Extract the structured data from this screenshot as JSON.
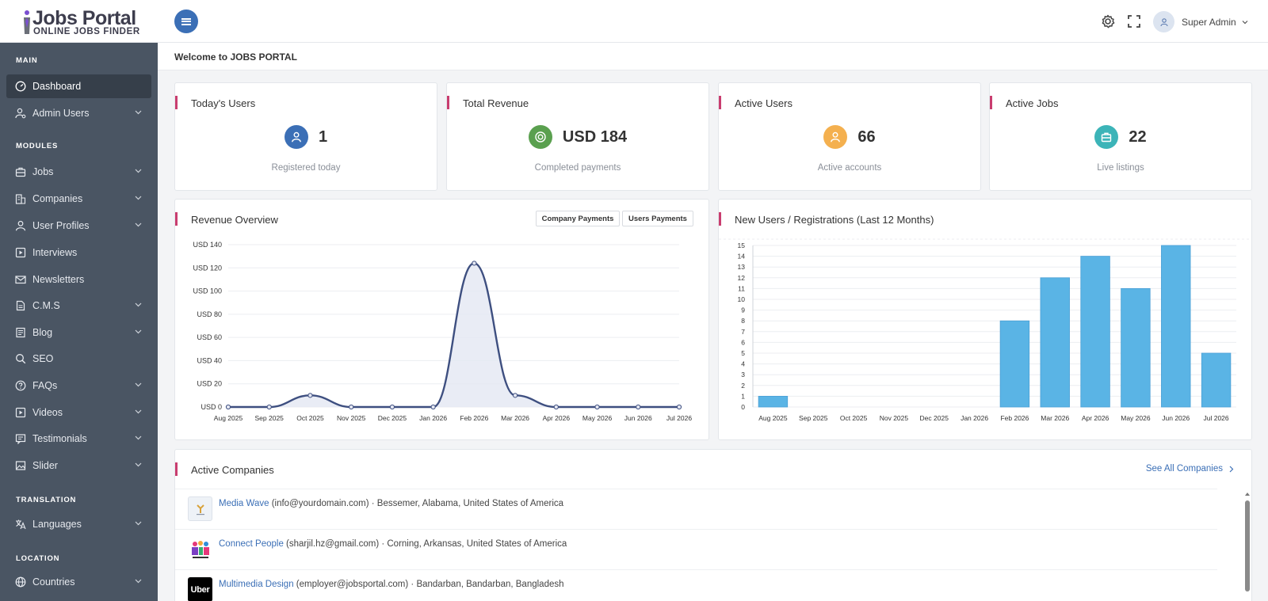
{
  "header": {
    "logo_title": "Jobs Portal",
    "logo_subtitle": "ONLINE JOBS FINDER",
    "user_name": "Super Admin",
    "icons": [
      "menu-icon",
      "gear-icon",
      "fullscreen-icon",
      "user-icon",
      "chevron-down-icon"
    ],
    "accent_color": "#3b6fb6"
  },
  "welcome": {
    "text": "Welcome to JOBS PORTAL"
  },
  "sidebar": {
    "sections": {
      "main": "MAIN",
      "modules": "MODULES",
      "translation": "TRANSLATION",
      "location": "LOCATION"
    },
    "items": [
      {
        "label": "Dashboard",
        "icon": "dashboard-icon",
        "active": true
      },
      {
        "label": "Admin Users",
        "icon": "user-cog-icon"
      },
      {
        "label": "Jobs",
        "icon": "briefcase-icon"
      },
      {
        "label": "Companies",
        "icon": "building-icon"
      },
      {
        "label": "User Profiles",
        "icon": "user-icon"
      },
      {
        "label": "Interviews",
        "icon": "play-square-icon"
      },
      {
        "label": "Newsletters",
        "icon": "mail-icon"
      },
      {
        "label": "C.M.S",
        "icon": "document-icon"
      },
      {
        "label": "Blog",
        "icon": "blog-icon"
      },
      {
        "label": "SEO",
        "icon": "search-icon"
      },
      {
        "label": "FAQs",
        "icon": "question-icon"
      },
      {
        "label": "Videos",
        "icon": "video-icon"
      },
      {
        "label": "Testimonials",
        "icon": "comment-icon"
      },
      {
        "label": "Slider",
        "icon": "image-icon"
      },
      {
        "label": "Languages",
        "icon": "translate-icon"
      },
      {
        "label": "Countries",
        "icon": "globe-icon"
      }
    ]
  },
  "stats": [
    {
      "title": "Today's Users",
      "value": "1",
      "sub": "Registered today",
      "icon": "user-icon",
      "color": "#3b6fb6"
    },
    {
      "title": "Total Revenue",
      "value": "USD 184",
      "sub": "Completed payments",
      "icon": "money-icon",
      "color": "#5aa04f"
    },
    {
      "title": "Active Users",
      "value": "66",
      "sub": "Active accounts",
      "icon": "user-icon",
      "color": "#f4b04f"
    },
    {
      "title": "Active Jobs",
      "value": "22",
      "sub": "Live listings",
      "icon": "briefcase-icon",
      "color": "#3cb4b8"
    }
  ],
  "revenue_panel": {
    "title": "Revenue Overview",
    "btn_company": "Company Payments",
    "btn_users": "Users Payments"
  },
  "users_panel": {
    "title": "New Users / Registrations (Last 12 Months)"
  },
  "chart_data": [
    {
      "type": "area",
      "title": "Revenue Overview",
      "categories": [
        "Aug 2025",
        "Sep 2025",
        "Oct 2025",
        "Nov 2025",
        "Dec 2025",
        "Jan 2026",
        "Feb 2026",
        "Mar 2026",
        "Apr 2026",
        "May 2026",
        "Jun 2026",
        "Jul 2026"
      ],
      "values": [
        0,
        0,
        10,
        0,
        0,
        0,
        124,
        10,
        0,
        0,
        0,
        0
      ],
      "ylim": [
        0,
        140
      ],
      "yticks": [
        "USD 0",
        "USD 20",
        "USD 40",
        "USD 60",
        "USD 80",
        "USD 100",
        "USD 120",
        "USD 140"
      ],
      "color": "#3e4f80",
      "grid": true
    },
    {
      "type": "bar",
      "title": "New Users / Registrations (Last 12 Months)",
      "categories": [
        "Aug 2025",
        "Sep 2025",
        "Oct 2025",
        "Nov 2025",
        "Dec 2025",
        "Jan 2026",
        "Feb 2026",
        "Mar 2026",
        "Apr 2026",
        "May 2026",
        "Jun 2026",
        "Jul 2026"
      ],
      "values": [
        1,
        0,
        0,
        0,
        0,
        0,
        8,
        12,
        14,
        11,
        15,
        5
      ],
      "ylim": [
        0,
        15
      ],
      "yticks": [
        "0",
        "1",
        "2",
        "3",
        "4",
        "5",
        "6",
        "7",
        "8",
        "9",
        "10",
        "11",
        "12",
        "13",
        "14",
        "15"
      ],
      "color": "#5ab4e5",
      "grid": true
    }
  ],
  "companies": {
    "title": "Active Companies",
    "see_all": "See All Companies",
    "rows": [
      {
        "name": "Media Wave",
        "rest": " (info@yourdomain.com) · Bessemer, Alabama, United States of America",
        "logo": "media-wave-logo"
      },
      {
        "name": "Connect People",
        "rest": " (sharjil.hz@gmail.com) · Corning, Arkansas, United States of America",
        "logo": "hub-logo"
      },
      {
        "name": "Multimedia Design",
        "rest": " (employer@jobsportal.com) · Bandarban, Bandarban, Bangladesh",
        "logo": "uber-logo",
        "logo_text": "Uber"
      }
    ]
  }
}
